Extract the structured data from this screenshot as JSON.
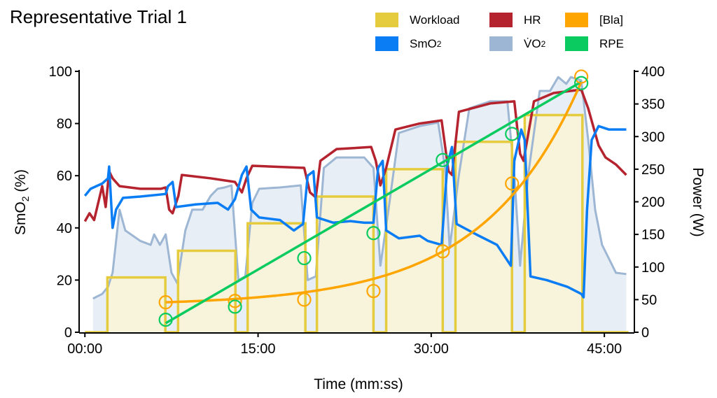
{
  "chart_data": {
    "type": "line",
    "title": "Representative Trial 1",
    "xlabel": "Time (mm:ss)",
    "ylabel": {
      "text": "SmO",
      "sub": "2",
      "rest": " (%)"
    },
    "y2label": "Power (W)",
    "xlim": [
      -0.5,
      47.6
    ],
    "ylim": [
      0,
      100
    ],
    "y2lim": [
      0,
      400
    ],
    "x_ticks": [
      {
        "value": 0,
        "label": "00:00"
      },
      {
        "value": 15,
        "label": "15:00"
      },
      {
        "value": 30,
        "label": "30:00"
      },
      {
        "value": 45,
        "label": "45:00"
      }
    ],
    "y_ticks": [
      {
        "value": 0,
        "label": "0"
      },
      {
        "value": 20,
        "label": "20"
      },
      {
        "value": 40,
        "label": "40"
      },
      {
        "value": 60,
        "label": "60"
      },
      {
        "value": 80,
        "label": "80"
      },
      {
        "value": 100,
        "label": "100"
      }
    ],
    "y2_ticks": [
      {
        "value": 0,
        "label": "0"
      },
      {
        "value": 50,
        "label": "50"
      },
      {
        "value": 100,
        "label": "100"
      },
      {
        "value": 150,
        "label": "150"
      },
      {
        "value": 200,
        "label": "200"
      },
      {
        "value": 250,
        "label": "250"
      },
      {
        "value": 300,
        "label": "300"
      },
      {
        "value": 350,
        "label": "350"
      },
      {
        "value": 400,
        "label": "400"
      }
    ],
    "legend": {
      "placement": "top-right",
      "items": [
        {
          "key": "workload",
          "label": "Workload",
          "sub": "",
          "color": "#E5CC3F"
        },
        {
          "key": "hr",
          "label": "HR",
          "sub": "",
          "color": "#B5232F"
        },
        {
          "key": "bla",
          "label": "[Bla]",
          "sub": "",
          "color": "#FFA500"
        },
        {
          "key": "smo2",
          "label": "SmO",
          "sub": "2",
          "color": "#0A7DF5"
        },
        {
          "key": "vo2",
          "label": "V̇O",
          "sub": "2",
          "color": "#9DB6D3"
        },
        {
          "key": "rpe",
          "label": "RPE",
          "sub": "",
          "color": "#0ACB5F"
        }
      ]
    },
    "series": {
      "workload": {
        "axis": "right",
        "unit": "W",
        "color": "#E5CC3F",
        "fill": "#FAF3D6",
        "stages": [
          {
            "start": 1.95,
            "end": 6.97,
            "watts": 84
          },
          {
            "start": 8.07,
            "end": 13.04,
            "watts": 125
          },
          {
            "start": 14.1,
            "end": 19.1,
            "watts": 167
          },
          {
            "start": 20.1,
            "end": 25.0,
            "watts": 208
          },
          {
            "start": 26.1,
            "end": 31.0,
            "watts": 250
          },
          {
            "start": 32.1,
            "end": 37.0,
            "watts": 292
          },
          {
            "start": 38.1,
            "end": 43.1,
            "watts": 333
          }
        ],
        "t_end": 47.1
      },
      "vo2": {
        "axis": "left",
        "color": "#9DB6D3",
        "fill": "#E8EEF6",
        "points": [
          [
            0.7,
            12.9
          ],
          [
            1.5,
            14.7
          ],
          [
            2,
            17.4
          ],
          [
            2.4,
            22.8
          ],
          [
            3,
            47
          ],
          [
            3.5,
            39
          ],
          [
            4.8,
            35
          ],
          [
            5.7,
            33.5
          ],
          [
            6,
            37.5
          ],
          [
            6.5,
            33.5
          ],
          [
            7,
            37.5
          ],
          [
            7.5,
            22.8
          ],
          [
            8,
            18.8
          ],
          [
            8.7,
            39
          ],
          [
            9.3,
            47
          ],
          [
            10.2,
            47
          ],
          [
            10.9,
            52.3
          ],
          [
            11.5,
            55
          ],
          [
            12.1,
            55.5
          ],
          [
            12.7,
            56.3
          ],
          [
            13.3,
            20
          ],
          [
            13.9,
            21.4
          ],
          [
            14.5,
            49.6
          ],
          [
            15.1,
            55
          ],
          [
            16.9,
            55.5
          ],
          [
            18.7,
            56.3
          ],
          [
            19.3,
            20
          ],
          [
            20,
            21.4
          ],
          [
            20.7,
            63
          ],
          [
            21.8,
            67
          ],
          [
            24.2,
            67
          ],
          [
            25,
            63
          ],
          [
            25.6,
            25.5
          ],
          [
            26.3,
            47
          ],
          [
            27.2,
            76.4
          ],
          [
            29,
            79
          ],
          [
            30.6,
            80.4
          ],
          [
            31.2,
            63
          ],
          [
            31.6,
            32.2
          ],
          [
            32.4,
            60.3
          ],
          [
            33.3,
            85.8
          ],
          [
            35.1,
            88.5
          ],
          [
            36.6,
            88.5
          ],
          [
            37.2,
            60.3
          ],
          [
            37.7,
            25.5
          ],
          [
            38.4,
            60.3
          ],
          [
            39.4,
            92.5
          ],
          [
            40.3,
            92.5
          ],
          [
            41,
            97.8
          ],
          [
            41.7,
            95.2
          ],
          [
            42.1,
            97.8
          ],
          [
            43,
            96.5
          ],
          [
            43.6,
            73.7
          ],
          [
            44.2,
            47
          ],
          [
            44.8,
            33.5
          ],
          [
            45.7,
            25.5
          ],
          [
            46,
            22.8
          ],
          [
            46.9,
            22.3
          ]
        ]
      },
      "hr": {
        "axis": "left",
        "color": "#B5232F",
        "points": [
          [
            0,
            42.5
          ],
          [
            0.4,
            45.6
          ],
          [
            0.8,
            43
          ],
          [
            1.5,
            56
          ],
          [
            1.8,
            48
          ],
          [
            2.1,
            61.7
          ],
          [
            2.4,
            59
          ],
          [
            3,
            56
          ],
          [
            4.8,
            55
          ],
          [
            6.6,
            55
          ],
          [
            7,
            55.5
          ],
          [
            7.3,
            47
          ],
          [
            7.6,
            45.6
          ],
          [
            8.1,
            52.3
          ],
          [
            8.4,
            60.3
          ],
          [
            10.9,
            59
          ],
          [
            13,
            57.6
          ],
          [
            13.6,
            53.6
          ],
          [
            14,
            59
          ],
          [
            14.5,
            63.8
          ],
          [
            19,
            63
          ],
          [
            19.5,
            53.6
          ],
          [
            20,
            51.7
          ],
          [
            20.4,
            65.7
          ],
          [
            21.8,
            70.2
          ],
          [
            24.8,
            71
          ],
          [
            25.2,
            65.7
          ],
          [
            25.6,
            56.3
          ],
          [
            26.1,
            63
          ],
          [
            26.9,
            77.7
          ],
          [
            29,
            80
          ],
          [
            30.9,
            81.2
          ],
          [
            31.5,
            61.7
          ],
          [
            31.8,
            60.3
          ],
          [
            32.4,
            84.5
          ],
          [
            35.1,
            87.7
          ],
          [
            37.2,
            88.5
          ],
          [
            37.7,
            68.4
          ],
          [
            38,
            65.7
          ],
          [
            38.9,
            88.5
          ],
          [
            40.6,
            91.7
          ],
          [
            43,
            93
          ],
          [
            43.6,
            85.8
          ],
          [
            44.5,
            71.6
          ],
          [
            45.1,
            67
          ],
          [
            46,
            64.3
          ],
          [
            46.9,
            60.3
          ]
        ]
      },
      "smo2": {
        "axis": "left",
        "color": "#0A7DF5",
        "points": [
          [
            0,
            52.3
          ],
          [
            0.5,
            55
          ],
          [
            1.5,
            57
          ],
          [
            2,
            59
          ],
          [
            2.1,
            63.5
          ],
          [
            2.4,
            40
          ],
          [
            2.7,
            47
          ],
          [
            3.3,
            51.5
          ],
          [
            4.8,
            52
          ],
          [
            7,
            53
          ],
          [
            7.2,
            56
          ],
          [
            7.6,
            57.6
          ],
          [
            7.9,
            48
          ],
          [
            9.6,
            49
          ],
          [
            11.5,
            49.6
          ],
          [
            12.4,
            47
          ],
          [
            13,
            51
          ],
          [
            13.6,
            60.3
          ],
          [
            14,
            63.5
          ],
          [
            14.4,
            47
          ],
          [
            15.1,
            44
          ],
          [
            16.9,
            43
          ],
          [
            18.1,
            39
          ],
          [
            18.9,
            41.5
          ],
          [
            19.3,
            60
          ],
          [
            19.8,
            61.7
          ],
          [
            20.1,
            44
          ],
          [
            21.5,
            42
          ],
          [
            23,
            42.6
          ],
          [
            24.2,
            42
          ],
          [
            25,
            42
          ],
          [
            25.4,
            63
          ],
          [
            25.8,
            65.7
          ],
          [
            26.1,
            39
          ],
          [
            27.2,
            36
          ],
          [
            29,
            37
          ],
          [
            29.7,
            35
          ],
          [
            30.9,
            33.5
          ],
          [
            31.4,
            64.3
          ],
          [
            31.8,
            71
          ],
          [
            32.2,
            41.5
          ],
          [
            33.9,
            37.5
          ],
          [
            35.7,
            33.5
          ],
          [
            36.9,
            25.5
          ],
          [
            37.2,
            65.7
          ],
          [
            37.8,
            77.7
          ],
          [
            38.1,
            73.7
          ],
          [
            38.6,
            21.4
          ],
          [
            40,
            20
          ],
          [
            41.8,
            17.4
          ],
          [
            43,
            14.7
          ],
          [
            43.2,
            13.4
          ],
          [
            43.5,
            47
          ],
          [
            43.9,
            73.7
          ],
          [
            44.5,
            79
          ],
          [
            45.4,
            77.7
          ],
          [
            46.9,
            77.7
          ]
        ]
      },
      "bla": {
        "axis": "left",
        "color": "#FFA500",
        "points": [
          [
            7,
            11.5
          ],
          [
            13,
            12
          ],
          [
            19,
            12.5
          ],
          [
            25,
            15.8
          ],
          [
            31,
            31
          ],
          [
            37,
            57
          ],
          [
            43,
            98
          ]
        ],
        "fit": {
          "type": "exponential",
          "t0": 7,
          "y0": 11.5,
          "k": 1.211,
          "c": 0.1183,
          "from": 7,
          "to": 43
        }
      },
      "rpe": {
        "axis": "left",
        "color": "#0ACB5F",
        "points": [
          [
            7,
            4.8
          ],
          [
            13,
            9.8
          ],
          [
            19,
            28.4
          ],
          [
            25,
            38
          ],
          [
            31,
            66
          ],
          [
            37,
            76
          ],
          [
            43,
            95.5
          ]
        ],
        "fit": {
          "type": "linear",
          "slope": 2.569,
          "intercept": -14.5,
          "from": 7,
          "to": 43
        }
      }
    }
  }
}
